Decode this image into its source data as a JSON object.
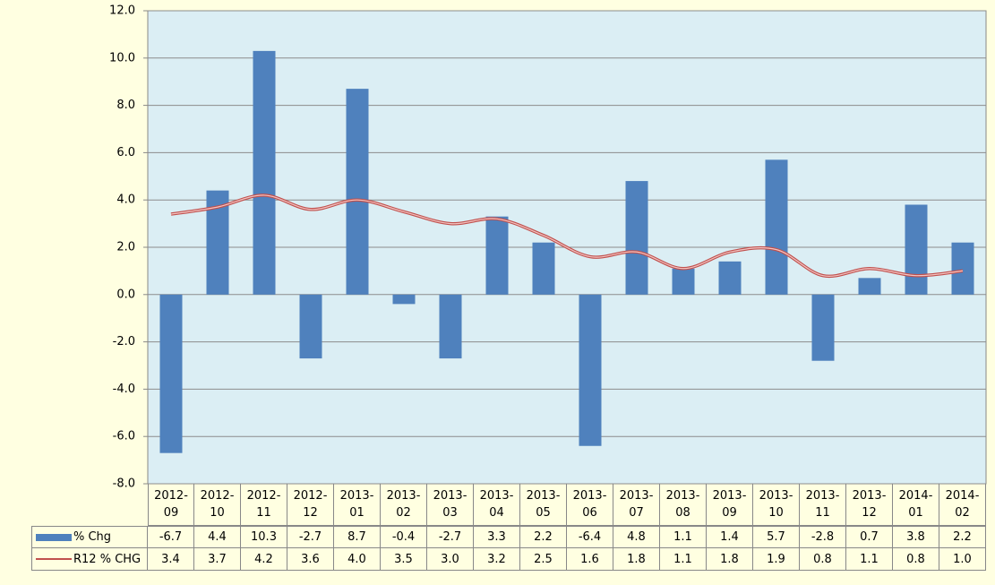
{
  "chart_data": {
    "type": "bar",
    "categories": [
      "2012-09",
      "2012-10",
      "2012-11",
      "2012-12",
      "2013-01",
      "2013-02",
      "2013-03",
      "2013-04",
      "2013-05",
      "2013-06",
      "2013-07",
      "2013-08",
      "2013-09",
      "2013-10",
      "2013-11",
      "2013-12",
      "2014-01",
      "2014-02"
    ],
    "series": [
      {
        "name": "% Chg",
        "type": "bar",
        "color": "#4f81bd",
        "values": [
          -6.7,
          4.4,
          10.3,
          -2.7,
          8.7,
          -0.4,
          -2.7,
          3.3,
          2.2,
          -6.4,
          4.8,
          1.1,
          1.4,
          5.7,
          -2.8,
          0.7,
          3.8,
          2.2
        ],
        "value_labels": [
          "-6.7",
          "4.4",
          "10.3",
          "-2.7",
          "8.7",
          "-0.4",
          "-2.7",
          "3.3",
          "2.2",
          "-6.4",
          "4.8",
          "1.1",
          "1.4",
          "5.7",
          "-2.8",
          "0.7",
          "3.8",
          "2.2"
        ]
      },
      {
        "name": "R12 % CHG",
        "type": "line",
        "color": "#c0504d",
        "values": [
          3.4,
          3.7,
          4.2,
          3.6,
          4.0,
          3.5,
          3.0,
          3.2,
          2.5,
          1.6,
          1.8,
          1.1,
          1.8,
          1.9,
          0.8,
          1.1,
          0.8,
          1.0
        ],
        "value_labels": [
          "3.4",
          "3.7",
          "4.2",
          "3.6",
          "4.0",
          "3.5",
          "3.0",
          "3.2",
          "2.5",
          "1.6",
          "1.8",
          "1.1",
          "1.8",
          "1.9",
          "0.8",
          "1.1",
          "0.8",
          "1.0"
        ]
      }
    ],
    "ylim": [
      -8,
      12
    ],
    "yticks": [
      {
        "value": -8,
        "label": "-8.0"
      },
      {
        "value": -6,
        "label": "-6.0"
      },
      {
        "value": -4,
        "label": "-4.0"
      },
      {
        "value": -2,
        "label": "-2.0"
      },
      {
        "value": 0,
        "label": "0.0"
      },
      {
        "value": 2,
        "label": "2.0"
      },
      {
        "value": 4,
        "label": "4.0"
      },
      {
        "value": 6,
        "label": "6.0"
      },
      {
        "value": 8,
        "label": "8.0"
      },
      {
        "value": 10,
        "label": "10.0"
      },
      {
        "value": 12,
        "label": "12.0"
      }
    ],
    "grid": true,
    "data_table": true
  }
}
